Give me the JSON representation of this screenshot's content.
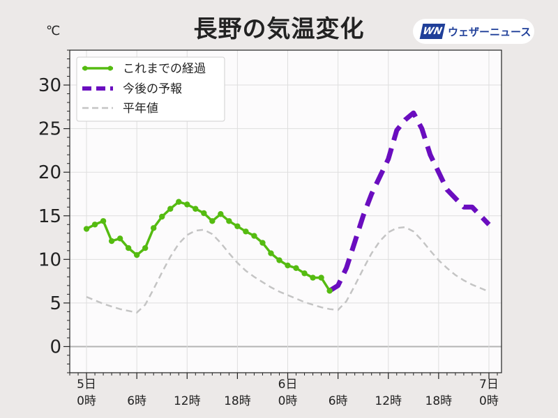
{
  "title": "長野の気温変化",
  "unit": "℃",
  "logo": {
    "mark": "WN",
    "text": "ウェザーニュース"
  },
  "legend": {
    "observed": "これまでの経過",
    "forecast": "今後の予報",
    "normal": "平年値"
  },
  "colors": {
    "observed": "#55bb11",
    "forecast": "#6a0dbf",
    "normal": "#c4c4c4",
    "zero_line": "#b4b4b4",
    "grid": "#dedede",
    "plot_bg": "#fcfbfc"
  },
  "chart_data": {
    "type": "line",
    "title": "長野の気温変化",
    "ylabel": "℃",
    "xlabel": "",
    "ylim": [
      -3,
      34
    ],
    "xlim": [
      -2,
      49.5
    ],
    "yticks": [
      0,
      5,
      10,
      15,
      20,
      25,
      30
    ],
    "xticks": [
      {
        "x": 0,
        "line1": "5日",
        "line2": "0時"
      },
      {
        "x": 6,
        "line1": "",
        "line2": "6時"
      },
      {
        "x": 12,
        "line1": "",
        "line2": "12時"
      },
      {
        "x": 18,
        "line1": "",
        "line2": "18時"
      },
      {
        "x": 24,
        "line1": "6日",
        "line2": "0時"
      },
      {
        "x": 30,
        "line1": "",
        "line2": "6時"
      },
      {
        "x": 36,
        "line1": "",
        "line2": "12時"
      },
      {
        "x": 42,
        "line1": "",
        "line2": "18時"
      },
      {
        "x": 48,
        "line1": "7日",
        "line2": "0時"
      }
    ],
    "grid": true,
    "legend_position": "top-left",
    "series": [
      {
        "name": "これまでの経過",
        "style": "solid-markers",
        "x": [
          0,
          1,
          2,
          3,
          4,
          5,
          6,
          7,
          8,
          9,
          10,
          11,
          12,
          13,
          14,
          15,
          16,
          17,
          18,
          19,
          20,
          21,
          22,
          23,
          24,
          25,
          26,
          27,
          28,
          29
        ],
        "y": [
          13.5,
          14.0,
          14.4,
          12.1,
          12.4,
          11.3,
          10.5,
          11.3,
          13.6,
          14.9,
          15.8,
          16.6,
          16.3,
          15.8,
          15.3,
          14.4,
          15.2,
          14.4,
          13.8,
          13.2,
          12.7,
          11.9,
          10.7,
          9.9,
          9.3,
          9.0,
          8.4,
          7.9,
          7.9,
          6.4
        ]
      },
      {
        "name": "今後の予報",
        "style": "dashed",
        "x": [
          29,
          30,
          31,
          32,
          33,
          34,
          35,
          36,
          37,
          38,
          39,
          40,
          41,
          42,
          43,
          44,
          45,
          46,
          47,
          48
        ],
        "y": [
          6.4,
          7.0,
          9.0,
          12.0,
          15.0,
          17.5,
          19.5,
          21.5,
          24.8,
          26.0,
          26.8,
          25.0,
          22.0,
          20.0,
          18.0,
          17.0,
          16.0,
          16.0,
          15.0,
          14.0
        ]
      },
      {
        "name": "平年値",
        "style": "dashed",
        "x": [
          0,
          1,
          2,
          3,
          4,
          5,
          6,
          7,
          8,
          9,
          10,
          11,
          12,
          13,
          14,
          15,
          16,
          17,
          18,
          19,
          20,
          21,
          22,
          23,
          24,
          25,
          26,
          27,
          28,
          29,
          30,
          31,
          32,
          33,
          34,
          35,
          36,
          37,
          38,
          39,
          40,
          41,
          42,
          43,
          44,
          45,
          46,
          47,
          48
        ],
        "y": [
          5.7,
          5.3,
          4.9,
          4.6,
          4.3,
          4.1,
          3.9,
          4.8,
          6.6,
          8.5,
          10.3,
          11.8,
          12.8,
          13.3,
          13.4,
          12.9,
          11.9,
          10.7,
          9.6,
          8.7,
          8.0,
          7.4,
          6.8,
          6.3,
          5.9,
          5.5,
          5.1,
          4.8,
          4.5,
          4.3,
          4.2,
          5.2,
          7.0,
          8.9,
          10.7,
          12.1,
          13.1,
          13.6,
          13.7,
          13.2,
          12.2,
          11.0,
          9.9,
          9.0,
          8.2,
          7.6,
          7.1,
          6.7,
          6.3
        ]
      }
    ]
  }
}
